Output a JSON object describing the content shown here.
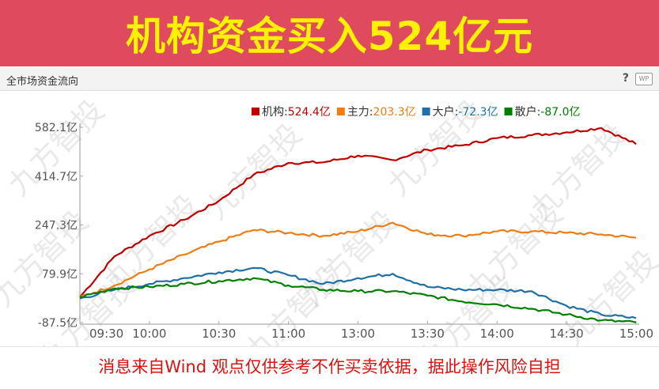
{
  "banner": {
    "title": "机构资金买入524亿元"
  },
  "panel": {
    "title": "全市场资金流向",
    "help": "?",
    "wp": "WP"
  },
  "watermark": "九方智投",
  "footer": {
    "disclaimer": "消息来自Wind 观点仅供参考不作买卖依据，据此操作风险自担"
  },
  "chart_data": {
    "type": "line",
    "x_ticks": [
      "09:30",
      "10:00",
      "10:30",
      "11:00",
      "13:00",
      "13:30",
      "14:00",
      "14:30",
      "15:00"
    ],
    "y_ticks": [
      "582.1亿",
      "414.7亿",
      "247.3亿",
      "79.9亿",
      "-87.5亿"
    ],
    "ylim": [
      -87.5,
      582.1
    ],
    "legend_position": "top-right",
    "legend": [
      {
        "name": "机构",
        "value": "524.4亿",
        "color": "#c00000"
      },
      {
        "name": "主力",
        "value": "203.3亿",
        "color": "#ed7d14"
      },
      {
        "name": "大户",
        "value": "-72.3亿",
        "color": "#1f6fa8"
      },
      {
        "name": "散户",
        "value": "-87.0亿",
        "color": "#008000"
      }
    ],
    "x": [
      0,
      15,
      30,
      45,
      60,
      75,
      90,
      105,
      120,
      135,
      150,
      165,
      180,
      195,
      210,
      225,
      240
    ],
    "series": [
      {
        "key": "inst",
        "color": "#c00000",
        "values": [
          0,
          140,
          210,
          265,
          330,
          420,
          460,
          462,
          485,
          470,
          505,
          520,
          545,
          555,
          565,
          580,
          524.4
        ]
      },
      {
        "key": "main",
        "color": "#ed7d14",
        "values": [
          0,
          40,
          95,
          145,
          190,
          230,
          220,
          210,
          225,
          255,
          215,
          210,
          225,
          225,
          220,
          215,
          203.3
        ]
      },
      {
        "key": "big",
        "color": "#1f6fa8",
        "values": [
          -5,
          25,
          45,
          65,
          85,
          100,
          75,
          45,
          65,
          80,
          35,
          25,
          25,
          20,
          -30,
          -60,
          -72.3
        ]
      },
      {
        "key": "retail",
        "color": "#008000",
        "values": [
          0,
          30,
          35,
          45,
          55,
          65,
          40,
          25,
          20,
          20,
          5,
          -15,
          -25,
          -40,
          -60,
          -80,
          -87.0
        ]
      }
    ]
  }
}
